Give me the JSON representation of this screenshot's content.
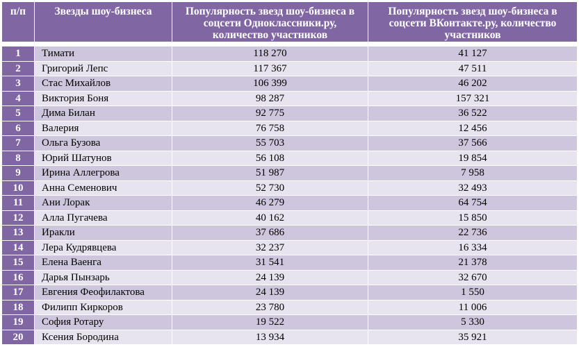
{
  "table": {
    "headers": {
      "num": "п/п",
      "name": "Звезды шоу-бизнеса",
      "ok": "Популярность звезд шоу-бизнеса в соцсети Одноклассники.ру, количество участников",
      "vk": "Популярность звезд шоу-бизнеса в соцсети ВКонтакте.ру, количество участников"
    },
    "rows": [
      {
        "num": "1",
        "name": "Тимати",
        "ok": "118 270",
        "vk": "41 127"
      },
      {
        "num": "2",
        "name": "Григорий Лепс",
        "ok": "117 367",
        "vk": "47 511"
      },
      {
        "num": "3",
        "name": "Стас Михайлов",
        "ok": "106 399",
        "vk": "46 202"
      },
      {
        "num": "4",
        "name": "Виктория Боня",
        "ok": "98 287",
        "vk": "157 321"
      },
      {
        "num": "5",
        "name": "Дима Билан",
        "ok": "92 775",
        "vk": "36 522"
      },
      {
        "num": "6",
        "name": "Валерия",
        "ok": "76 758",
        "vk": "12 456"
      },
      {
        "num": "7",
        "name": "Ольга Бузова",
        "ok": "55 703",
        "vk": "37 566"
      },
      {
        "num": "8",
        "name": "Юрий Шатунов",
        "ok": "56 108",
        "vk": "19 854"
      },
      {
        "num": "9",
        "name": "Ирина Аллегрова",
        "ok": "51 987",
        "vk": "7 958"
      },
      {
        "num": "10",
        "name": "Анна Семенович",
        "ok": "52 730",
        "vk": "32 493"
      },
      {
        "num": "11",
        "name": "Ани Лорак",
        "ok": "46 279",
        "vk": "64 754"
      },
      {
        "num": "12",
        "name": "Алла Пугачева",
        "ok": "40 162",
        "vk": "15 850"
      },
      {
        "num": "13",
        "name": "Иракли",
        "ok": "37 686",
        "vk": "22 736"
      },
      {
        "num": "14",
        "name": "Лера Кудрявцева",
        "ok": "32 237",
        "vk": "16 334"
      },
      {
        "num": "15",
        "name": "Елена Ваенга",
        "ok": "31 541",
        "vk": "21 378"
      },
      {
        "num": "16",
        "name": "Дарья Пынзарь",
        "ok": "24 139",
        "vk": "32 670"
      },
      {
        "num": "17",
        "name": "Евгения Феофилактова",
        "ok": "24 139",
        "vk": "1 550"
      },
      {
        "num": "18",
        "name": "Филипп Киркоров",
        "ok": "23 780",
        "vk": "11 006"
      },
      {
        "num": "19",
        "name": "София Ротару",
        "ok": "19 522",
        "vk": "5 330"
      },
      {
        "num": "20",
        "name": "Ксения Бородина",
        "ok": "13 934",
        "vk": "35 921"
      }
    ]
  },
  "colors": {
    "header_bg": "#8066a3",
    "row_odd": "#cdc6dc",
    "row_even": "#e7e3ef"
  }
}
